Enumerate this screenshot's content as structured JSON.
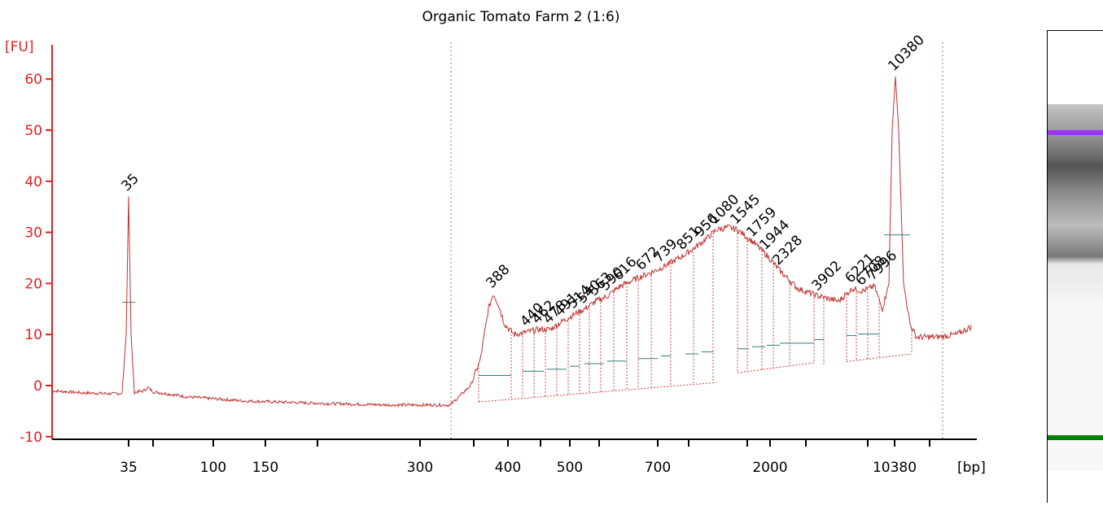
{
  "chart_data": {
    "type": "line",
    "title": "Organic Tomato Farm 2 (1:6)",
    "ylabel": "[FU]",
    "xlabel": "[bp]",
    "ylim": [
      -10,
      65
    ],
    "yticks": [
      -10,
      0,
      10,
      20,
      30,
      40,
      50,
      60
    ],
    "xtick_labels": [
      "35",
      "",
      "100",
      "150",
      "",
      "300",
      "",
      "400",
      "",
      "500",
      "",
      "700",
      "",
      "",
      "2000",
      "",
      "",
      "10380",
      ""
    ],
    "x_axis_unit": "[bp]",
    "grid": false,
    "colors": {
      "axis": "#e02020",
      "trace": "#c03030",
      "lower_marker": "#008000",
      "upper_marker": "#9933ff"
    },
    "markers": [
      {
        "label": "35",
        "fu": 37,
        "color": "#008000"
      },
      {
        "label": "10380",
        "fu": 60.5,
        "color": "#9933ff"
      }
    ],
    "peaks": [
      {
        "label": "388",
        "fu": 18
      },
      {
        "label": "440",
        "fu": 10.5
      },
      {
        "label": "462",
        "fu": 11
      },
      {
        "label": "478",
        "fu": 11
      },
      {
        "label": "491",
        "fu": 12.5
      },
      {
        "label": "514",
        "fu": 14
      },
      {
        "label": "540",
        "fu": 15
      },
      {
        "label": "563",
        "fu": 16.5
      },
      {
        "label": "590",
        "fu": 17.5
      },
      {
        "label": "616",
        "fu": 19.5
      },
      {
        "label": "672",
        "fu": 21.5
      },
      {
        "label": "739",
        "fu": 23
      },
      {
        "label": "851",
        "fu": 25.5
      },
      {
        "label": "956",
        "fu": 28
      },
      {
        "label": "1080",
        "fu": 30.5
      },
      {
        "label": "1545",
        "fu": 30.5
      },
      {
        "label": "1759",
        "fu": 28
      },
      {
        "label": "1944",
        "fu": 25.5
      },
      {
        "label": "2328",
        "fu": 22.5
      },
      {
        "label": "3902",
        "fu": 17.5
      },
      {
        "label": "6221",
        "fu": 19
      },
      {
        "label": "6708",
        "fu": 18.5
      },
      {
        "label": "7996",
        "fu": 19.5
      }
    ]
  },
  "gel_lane": {
    "colors": {
      "lower_band": "#008000",
      "upper_band": "#9933ff"
    }
  }
}
